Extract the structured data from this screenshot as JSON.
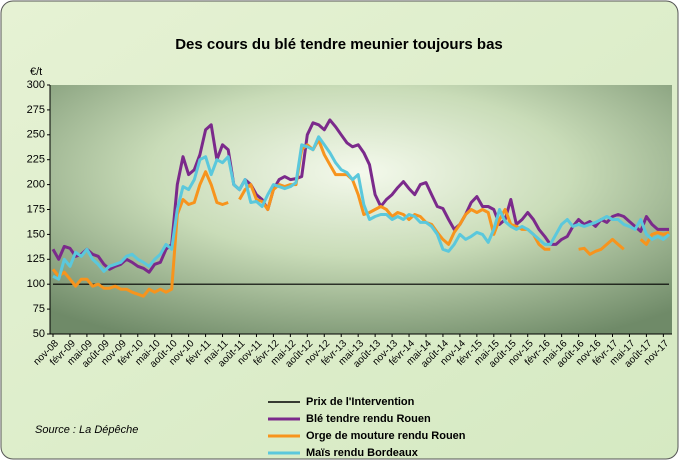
{
  "chart_data": {
    "type": "line",
    "title": "Des cours du blé tendre meunier toujours bas",
    "y_label": "€/t",
    "source": "Source : La Dépêche",
    "ylim": [
      50,
      300
    ],
    "yticks": [
      50,
      75,
      100,
      125,
      150,
      175,
      200,
      225,
      250,
      275,
      300
    ],
    "categories": [
      "nov-08",
      null,
      null,
      "févr-09",
      null,
      null,
      "mai-09",
      null,
      null,
      "août-09",
      null,
      null,
      "nov-09",
      null,
      null,
      "févr-10",
      null,
      null,
      "mai-10",
      null,
      null,
      "août-10",
      null,
      null,
      "nov-10",
      null,
      null,
      "févr-11",
      null,
      null,
      "mai-11",
      null,
      null,
      "août-11",
      null,
      null,
      "nov-11",
      null,
      null,
      "févr-12",
      null,
      null,
      "mai-12",
      null,
      null,
      "août-12",
      null,
      null,
      "nov-12",
      null,
      null,
      "févr-13",
      null,
      null,
      "mai-13",
      null,
      null,
      "août-13",
      null,
      null,
      "nov-13",
      null,
      null,
      "févr-14",
      null,
      null,
      "mai-14",
      null,
      null,
      "août-14",
      null,
      null,
      "nov-14",
      null,
      null,
      "févr-15",
      null,
      null,
      "mai-15",
      null,
      null,
      "août-15",
      null,
      null,
      "nov-15",
      null,
      null,
      "févr-16",
      null,
      null,
      "mai-16",
      null,
      null,
      "août-16",
      null,
      null,
      "nov-16",
      null,
      null,
      "févr-17",
      null,
      null,
      "mai-17",
      null,
      null,
      "août-17",
      null,
      null,
      "nov-17",
      null
    ],
    "series": [
      {
        "name": "Prix de l'Intervention",
        "color": "#000000",
        "values": [
          100,
          100,
          100,
          100,
          100,
          100,
          100,
          100,
          100,
          100,
          100,
          100,
          100,
          100,
          100,
          100,
          100,
          100,
          100,
          100,
          100,
          100,
          100,
          100,
          100,
          100,
          100,
          100,
          100,
          100,
          100,
          100,
          100,
          100,
          100,
          100,
          100,
          100,
          100,
          100,
          100,
          100,
          100,
          100,
          100,
          100,
          100,
          100,
          100,
          100,
          100,
          100,
          100,
          100,
          100,
          100,
          100,
          100,
          100,
          100,
          100,
          100,
          100,
          100,
          100,
          100,
          100,
          100,
          100,
          100,
          100,
          100,
          100,
          100,
          100,
          100,
          100,
          100,
          100,
          100,
          100,
          100,
          100,
          100,
          100,
          100,
          100,
          100,
          100,
          100,
          100,
          100,
          100,
          100,
          100,
          100,
          100,
          100,
          100,
          100,
          100,
          100,
          100,
          100,
          100,
          100,
          100,
          100,
          100,
          100
        ]
      },
      {
        "name": "Blé tendre rendu Rouen",
        "color": "#7b2a8b",
        "values": [
          135,
          125,
          138,
          136,
          128,
          130,
          135,
          130,
          128,
          120,
          115,
          118,
          120,
          125,
          122,
          118,
          116,
          112,
          120,
          122,
          135,
          140,
          200,
          228,
          210,
          215,
          230,
          255,
          260,
          225,
          240,
          235,
          200,
          195,
          205,
          200,
          190,
          185,
          175,
          195,
          205,
          208,
          205,
          206,
          208,
          250,
          262,
          260,
          255,
          265,
          258,
          250,
          242,
          238,
          240,
          232,
          220,
          190,
          178,
          185,
          190,
          197,
          203,
          196,
          190,
          200,
          202,
          190,
          178,
          176,
          165,
          155,
          160,
          170,
          182,
          188,
          178,
          178,
          175,
          160,
          165,
          185,
          160,
          165,
          172,
          165,
          155,
          148,
          140,
          140,
          145,
          148,
          158,
          165,
          160,
          163,
          158,
          165,
          162,
          168,
          170,
          168,
          163,
          158,
          153,
          168,
          160,
          155,
          155,
          155
        ]
      },
      {
        "name": "Orge de mouture rendu Rouen",
        "color": "#f7941d",
        "values": [
          115,
          108,
          112,
          105,
          98,
          105,
          105,
          98,
          100,
          96,
          96,
          98,
          95,
          95,
          92,
          90,
          88,
          95,
          92,
          95,
          92,
          95,
          170,
          185,
          180,
          182,
          200,
          213,
          200,
          182,
          180,
          182,
          null,
          185,
          195,
          200,
          185,
          183,
          175,
          195,
          200,
          198,
          200,
          200,
          235,
          240,
          235,
          245,
          230,
          220,
          210,
          210,
          210,
          205,
          190,
          170,
          172,
          175,
          178,
          175,
          168,
          172,
          170,
          165,
          170,
          168,
          162,
          160,
          152,
          145,
          140,
          152,
          160,
          170,
          175,
          172,
          175,
          172,
          150,
          165,
          175,
          160,
          158,
          155,
          155,
          150,
          140,
          135,
          135,
          null,
          null,
          null,
          null,
          135,
          136,
          130,
          133,
          135,
          140,
          145,
          140,
          135,
          null,
          null,
          145,
          140,
          150,
          152,
          150,
          152
        ]
      },
      {
        "name": "Maïs rendu Bordeaux",
        "color": "#5bc8dc",
        "values": [
          108,
          105,
          125,
          118,
          132,
          128,
          135,
          125,
          120,
          113,
          118,
          120,
          122,
          128,
          130,
          125,
          122,
          118,
          125,
          130,
          140,
          135,
          175,
          198,
          195,
          205,
          225,
          228,
          210,
          225,
          222,
          228,
          200,
          195,
          205,
          182,
          183,
          178,
          190,
          200,
          198,
          196,
          198,
          202,
          240,
          238,
          235,
          248,
          240,
          232,
          222,
          215,
          212,
          205,
          210,
          180,
          165,
          168,
          170,
          170,
          165,
          168,
          165,
          170,
          168,
          162,
          162,
          158,
          150,
          135,
          133,
          140,
          150,
          145,
          148,
          152,
          150,
          142,
          155,
          175,
          163,
          158,
          155,
          158,
          155,
          150,
          145,
          140,
          140,
          150,
          160,
          165,
          158,
          160,
          158,
          160,
          162,
          165,
          168,
          165,
          165,
          160,
          158,
          155,
          165,
          150,
          145,
          148,
          145,
          150
        ]
      }
    ]
  }
}
